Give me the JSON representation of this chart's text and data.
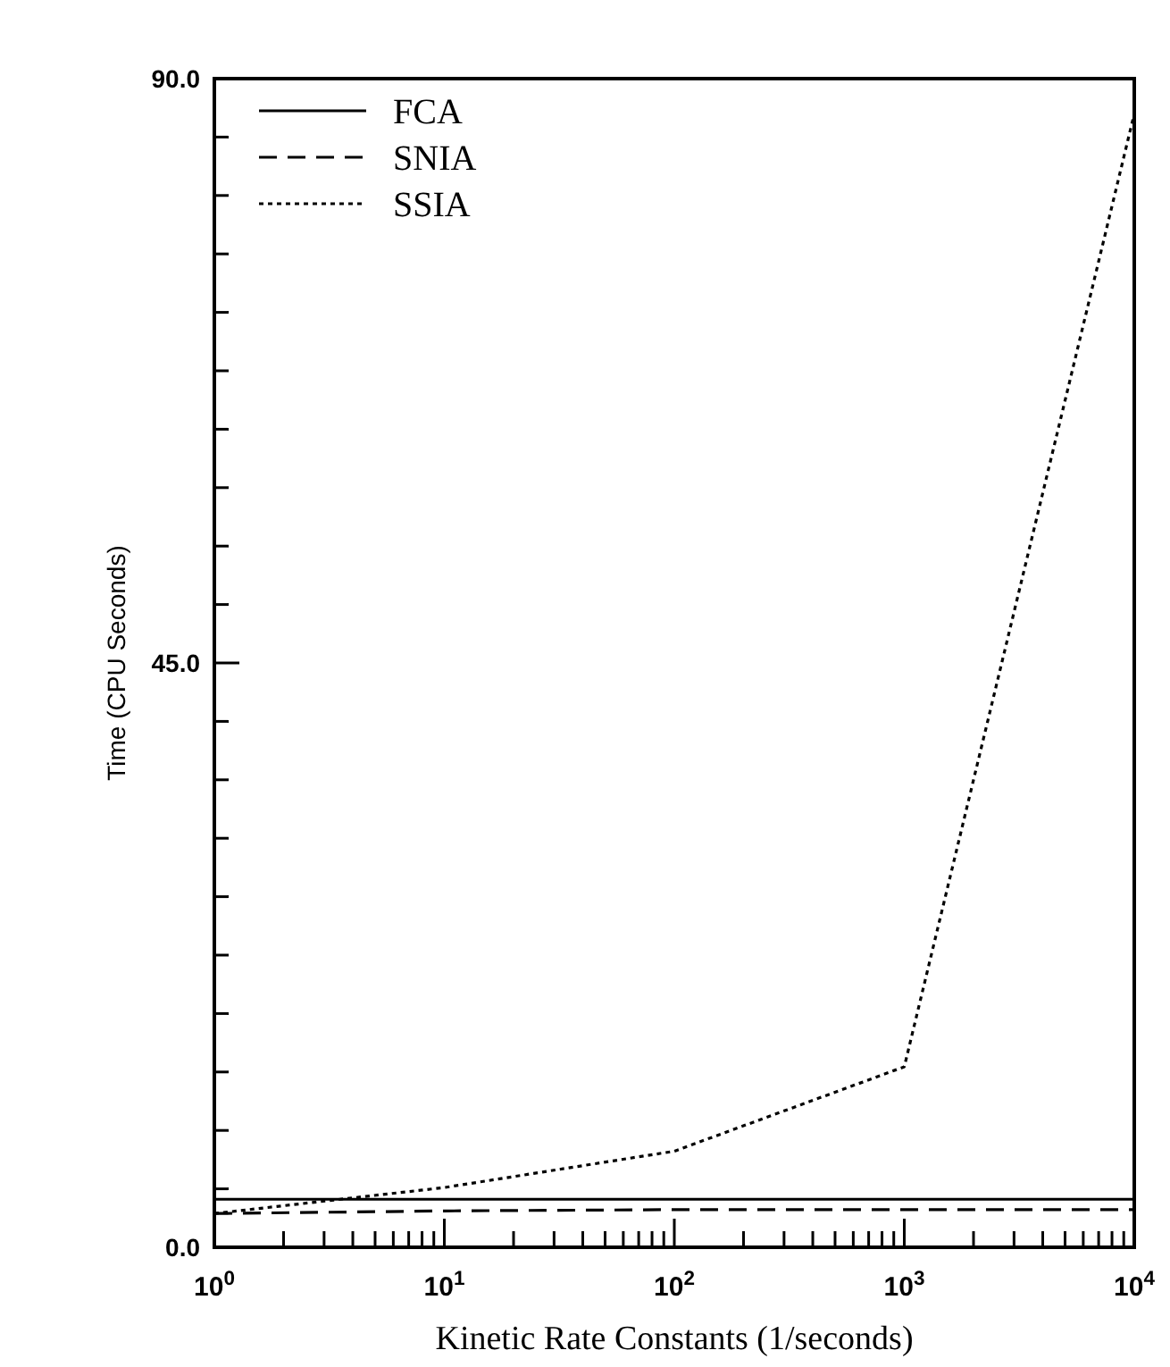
{
  "chart_data": {
    "type": "line",
    "xlabel": "Kinetic Rate Constants (1/seconds)",
    "ylabel": "Time (CPU Seconds)",
    "log": "x",
    "x": [
      1,
      10,
      100,
      1000,
      10000
    ],
    "xlim": [
      1,
      10000
    ],
    "xticks": [
      {
        "value": 1,
        "label": "10$^{0}$"
      },
      {
        "value": 2,
        "label": null
      },
      {
        "value": 3,
        "label": null
      },
      {
        "value": 4,
        "label": null
      },
      {
        "value": 5,
        "label": null
      },
      {
        "value": 6,
        "label": null
      },
      {
        "value": 7,
        "label": null
      },
      {
        "value": 8,
        "label": null
      },
      {
        "value": 9,
        "label": null
      },
      {
        "value": 10,
        "label": "10$^{1}$"
      },
      {
        "value": 20,
        "label": null
      },
      {
        "value": 30,
        "label": null
      },
      {
        "value": 40,
        "label": null
      },
      {
        "value": 50,
        "label": null
      },
      {
        "value": 60,
        "label": null
      },
      {
        "value": 70,
        "label": null
      },
      {
        "value": 80,
        "label": null
      },
      {
        "value": 90,
        "label": null
      },
      {
        "value": 100,
        "label": "10$^{2}$"
      },
      {
        "value": 200,
        "label": null
      },
      {
        "value": 300,
        "label": null
      },
      {
        "value": 400,
        "label": null
      },
      {
        "value": 500,
        "label": null
      },
      {
        "value": 600,
        "label": null
      },
      {
        "value": 700,
        "label": null
      },
      {
        "value": 800,
        "label": null
      },
      {
        "value": 900,
        "label": null
      },
      {
        "value": 1000,
        "label": "10$^{3}$"
      },
      {
        "value": 2000,
        "label": null
      },
      {
        "value": 3000,
        "label": null
      },
      {
        "value": 4000,
        "label": null
      },
      {
        "value": 5000,
        "label": null
      },
      {
        "value": 6000,
        "label": null
      },
      {
        "value": 7000,
        "label": null
      },
      {
        "value": 8000,
        "label": null
      },
      {
        "value": 9000,
        "label": null
      },
      {
        "value": 10000,
        "label": "10$^{4}$"
      }
    ],
    "ylim": [
      0,
      90
    ],
    "yticks": [
      {
        "value": 0,
        "label": "0.0"
      },
      {
        "value": 4.5,
        "label": null
      },
      {
        "value": 9,
        "label": null
      },
      {
        "value": 13.5,
        "label": null
      },
      {
        "value": 18,
        "label": null
      },
      {
        "value": 22.5,
        "label": null
      },
      {
        "value": 27,
        "label": null
      },
      {
        "value": 31.5,
        "label": null
      },
      {
        "value": 36,
        "label": null
      },
      {
        "value": 40.5,
        "label": null
      },
      {
        "value": 45,
        "label": "45.0"
      },
      {
        "value": 49.5,
        "label": null
      },
      {
        "value": 54,
        "label": null
      },
      {
        "value": 58.5,
        "label": null
      },
      {
        "value": 63,
        "label": null
      },
      {
        "value": 67.5,
        "label": null
      },
      {
        "value": 72,
        "label": null
      },
      {
        "value": 76.5,
        "label": null
      },
      {
        "value": 81,
        "label": null
      },
      {
        "value": 85.5,
        "label": null
      },
      {
        "value": 90,
        "label": "90.0"
      }
    ],
    "legend": "top left",
    "grid": false,
    "series": [
      {
        "name": "FCA",
        "color": "#000000",
        "line_style": "solid",
        "values": [
          3.7,
          3.7,
          3.7,
          3.7,
          3.7
        ]
      },
      {
        "name": "SNIA",
        "color": "#000000",
        "line_style": "dashed",
        "values": [
          2.6,
          2.8,
          2.9,
          2.9,
          2.9
        ]
      },
      {
        "name": "SSIA",
        "color": "#000000",
        "line_style": "dotted",
        "values": [
          2.6,
          4.6,
          7.4,
          13.9,
          87.3
        ]
      }
    ]
  }
}
